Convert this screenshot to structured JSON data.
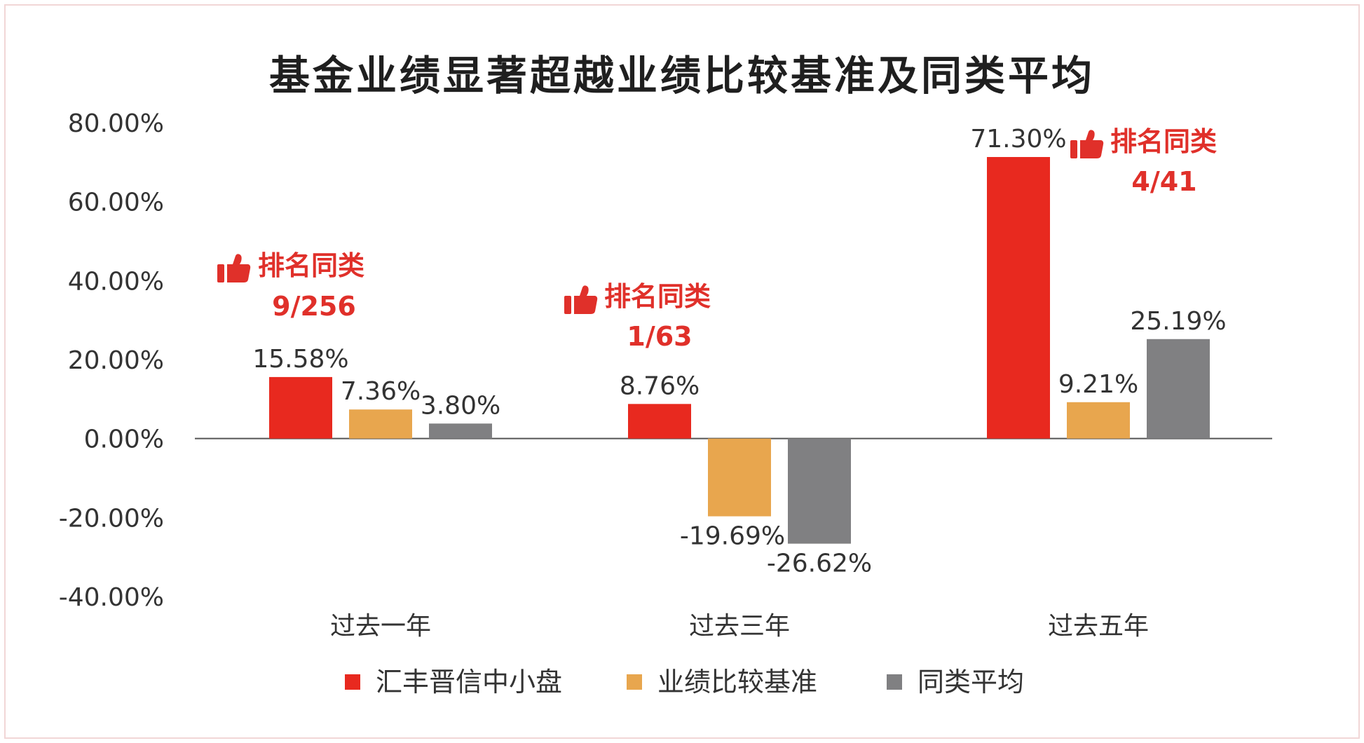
{
  "colors": {
    "fund": "#e8291f",
    "benchmark": "#e8a64e",
    "peer": "#808082",
    "rank": "#e0302a",
    "axis": "#555555",
    "text": "#333333"
  },
  "chart_data": {
    "type": "bar",
    "title": "基金业绩显著超越业绩比较基准及同类平均",
    "categories": [
      "过去一年",
      "过去三年",
      "过去五年"
    ],
    "series": [
      {
        "name": "汇丰晋信中小盘",
        "color": "#e8291f",
        "values": [
          15.58,
          8.76,
          71.3
        ],
        "labels": [
          "15.58%",
          "8.76%",
          "71.30%"
        ]
      },
      {
        "name": "业绩比较基准",
        "color": "#e8a64e",
        "values": [
          7.36,
          -19.69,
          9.21
        ],
        "labels": [
          "7.36%",
          "-19.69%",
          "9.21%"
        ]
      },
      {
        "name": "同类平均",
        "color": "#808082",
        "values": [
          3.8,
          -26.62,
          25.19
        ],
        "labels": [
          "3.80%",
          "-26.62%",
          "25.19%"
        ]
      }
    ],
    "ylim": [
      -40,
      80
    ],
    "yticks": [
      80,
      60,
      40,
      20,
      0,
      -20,
      -40
    ],
    "ytick_labels": [
      "80.00%",
      "60.00%",
      "40.00%",
      "20.00%",
      "0.00%",
      "-20.00%",
      "-40.00%"
    ],
    "annotations": [
      {
        "category": "过去一年",
        "head": "排名同类",
        "rank": "9/256",
        "icon": "thumbs-up-icon"
      },
      {
        "category": "过去三年",
        "head": "排名同类",
        "rank": "1/63",
        "icon": "thumbs-up-icon"
      },
      {
        "category": "过去五年",
        "head": "排名同类",
        "rank": "4/41",
        "icon": "thumbs-up-icon"
      }
    ],
    "legend": "bottom",
    "grid": false
  }
}
